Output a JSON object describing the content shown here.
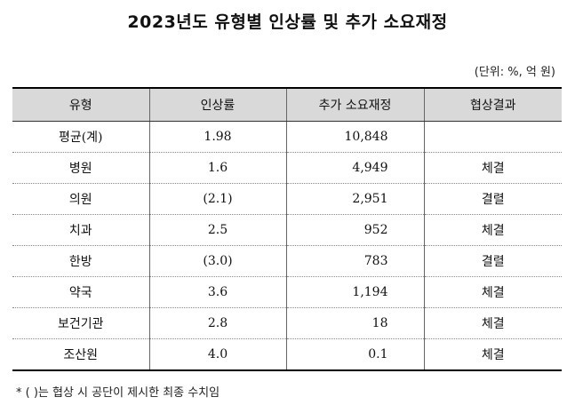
{
  "title": "2023년도 유형별 인상률 및 추가 소요재정",
  "unit": "(단위: %, 억 원)",
  "table": {
    "headers": [
      "유형",
      "인상률",
      "추가 소요재정",
      "협상결과"
    ],
    "rows": [
      {
        "type": "평균(계)",
        "rate": "1.98",
        "budget": "10,848",
        "result": ""
      },
      {
        "type": "병원",
        "rate": "1.6",
        "budget": "4,949",
        "result": "체결"
      },
      {
        "type": "의원",
        "rate": "(2.1)",
        "budget": "2,951",
        "result": "결렬"
      },
      {
        "type": "치과",
        "rate": "2.5",
        "budget": "952",
        "result": "체결"
      },
      {
        "type": "한방",
        "rate": "(3.0)",
        "budget": "783",
        "result": "결렬"
      },
      {
        "type": "약국",
        "rate": "3.6",
        "budget": "1,194",
        "result": "체결"
      },
      {
        "type": "보건기관",
        "rate": "2.8",
        "budget": "18",
        "result": "체결"
      },
      {
        "type": "조산원",
        "rate": "4.0",
        "budget": "0.1",
        "result": "체결"
      }
    ]
  },
  "note": "* (  )는 협상 시 공단이 제시한 최종 수치임"
}
